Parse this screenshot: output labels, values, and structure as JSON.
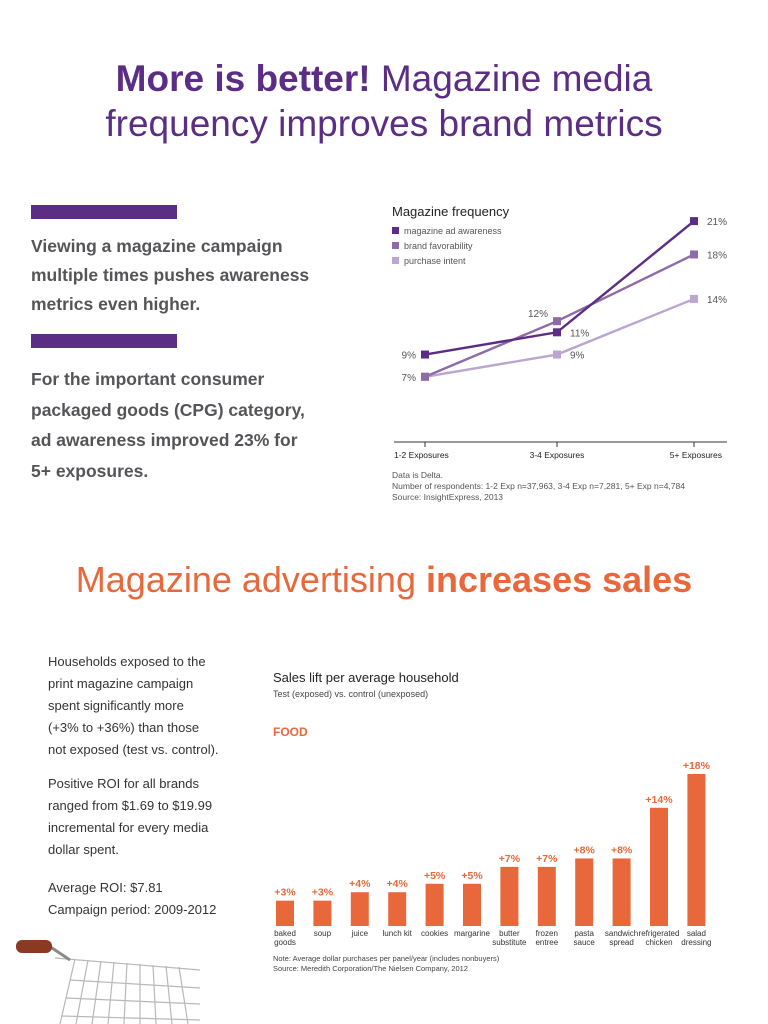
{
  "header": {
    "title_bold": "More is better!",
    "title_rest": " Magazine media",
    "title_line2": "frequency improves brand metrics"
  },
  "left_panel": {
    "para1_lines": [
      "Viewing a magazine campaign",
      "multiple times pushes awareness",
      "metrics even higher."
    ],
    "para2_lines": [
      "For the important consumer",
      "packaged goods (CPG) category,",
      "ad awareness improved 23% for",
      "5+ exposures."
    ]
  },
  "chart_data": [
    {
      "type": "line",
      "title": "Magazine frequency",
      "categories": [
        "1-2 Exposures",
        "3-4 Exposures",
        "5+ Exposures"
      ],
      "series": [
        {
          "name": "magazine ad awareness",
          "values": [
            9,
            11,
            21
          ],
          "labels": [
            "9%",
            "11%",
            "21%"
          ]
        },
        {
          "name": "brand favorability",
          "values": [
            7,
            12,
            18
          ],
          "labels": [
            "7%",
            "12%",
            "18%"
          ]
        },
        {
          "name": "purchase intent",
          "values": [
            7,
            9,
            14
          ],
          "labels": [
            "",
            "9%",
            "14%"
          ]
        }
      ],
      "colors": [
        "#5b2d84",
        "#8e6aa8",
        "#bba6cf"
      ],
      "ylim": [
        5,
        22
      ],
      "legend": "top-left",
      "grid": false
    },
    {
      "type": "bar",
      "title": "Sales lift per average household",
      "subtitle": "Test (exposed) vs. control (unexposed)",
      "group_label": "FOOD",
      "categories": [
        [
          "baked",
          "goods"
        ],
        [
          "soup"
        ],
        [
          "juice"
        ],
        [
          "lunch kit"
        ],
        [
          "cookies"
        ],
        [
          "margarine"
        ],
        [
          "butter",
          "substitute"
        ],
        [
          "frozen",
          "entree"
        ],
        [
          "pasta",
          "sauce"
        ],
        [
          "sandwich",
          "spread"
        ],
        [
          "refrigerated",
          "chicken"
        ],
        [
          "salad",
          "dressing"
        ]
      ],
      "values": [
        3,
        3,
        4,
        4,
        5,
        5,
        7,
        7,
        8,
        8,
        14,
        18
      ],
      "labels": [
        "+3%",
        "+3%",
        "+4%",
        "+4%",
        "+5%",
        "+5%",
        "+7%",
        "+7%",
        "+8%",
        "+8%",
        "+14%",
        "+18%"
      ],
      "color": "#e8683b",
      "ylim": [
        0,
        18
      ]
    }
  ],
  "line_notes": [
    "Data is Delta.",
    "Number of respondents: 1-2 Exp n=37,963, 3-4 Exp n=7,281, 5+ Exp n=4,784",
    "Source: InsightExpress, 2013"
  ],
  "sales_section": {
    "title_regular": "Magazine advertising ",
    "title_bold": "increases sales",
    "para1_lines": [
      "Households exposed to the",
      "print magazine campaign",
      "spent significantly more",
      "(+3% to +36%) than those",
      "not exposed (test vs. control)."
    ],
    "para2_lines": [
      "Positive ROI for all brands",
      "ranged from $1.69 to $19.99",
      "incremental for every media",
      "dollar spent."
    ],
    "para3_lines": [
      "Average ROI: $7.81",
      "Campaign period: 2009-2012"
    ]
  },
  "bar_notes": [
    "Note: Average dollar purchases per panel/year (includes nonbuyers)",
    "Source: Meredith Corporation/The Nielsen Company, 2012"
  ],
  "icons": {
    "cart": "shopping-cart-icon"
  }
}
